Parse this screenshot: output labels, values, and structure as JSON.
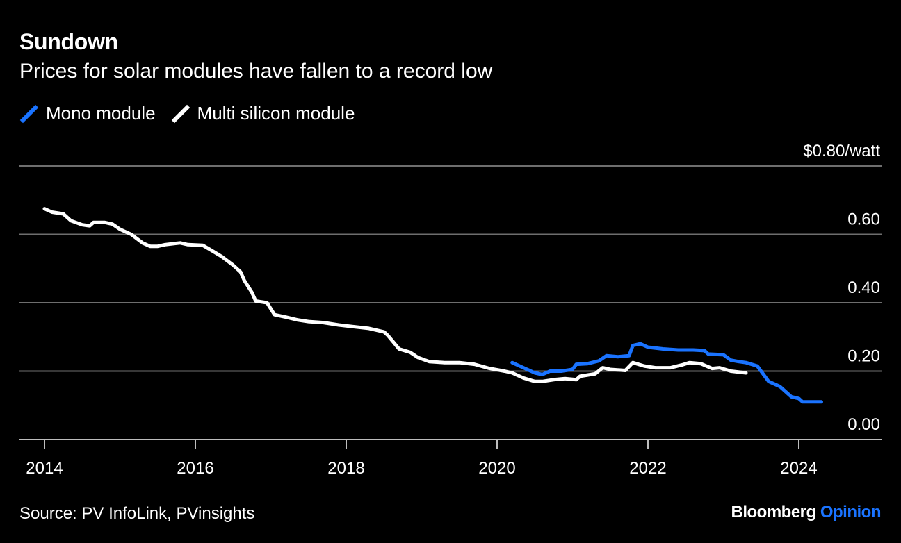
{
  "title": "Sundown",
  "subtitle": "Prices for solar modules have fallen to a record low",
  "source": "Source: PV InfoLink, PVinsights",
  "brand": {
    "name": "Bloomberg",
    "suffix": "Opinion",
    "suffix_color": "#1a73ff"
  },
  "chart_data": {
    "type": "line",
    "title": "Sundown",
    "subtitle": "Prices for solar modules have fallen to a record low",
    "y_unit_label": "$0.80/watt",
    "ylim": [
      0,
      0.8
    ],
    "xlim": [
      2013.7,
      2025.2
    ],
    "y_ticks": [
      {
        "value": 0.8,
        "label": "$0.80/watt"
      },
      {
        "value": 0.6,
        "label": "0.60"
      },
      {
        "value": 0.4,
        "label": "0.40"
      },
      {
        "value": 0.2,
        "label": "0.20"
      },
      {
        "value": 0.0,
        "label": "0.00"
      }
    ],
    "x_ticks": [
      {
        "value": 2014,
        "label": "2014"
      },
      {
        "value": 2016,
        "label": "2016"
      },
      {
        "value": 2018,
        "label": "2018"
      },
      {
        "value": 2020,
        "label": "2020"
      },
      {
        "value": 2022,
        "label": "2022"
      },
      {
        "value": 2024,
        "label": "2024"
      }
    ],
    "grid": true,
    "legend_position": "top-left",
    "series": [
      {
        "name": "Mono module",
        "color": "#1a73ff",
        "points": [
          [
            2020.2,
            0.225
          ],
          [
            2020.35,
            0.21
          ],
          [
            2020.5,
            0.195
          ],
          [
            2020.6,
            0.19
          ],
          [
            2020.7,
            0.2
          ],
          [
            2020.85,
            0.2
          ],
          [
            2021.0,
            0.205
          ],
          [
            2021.05,
            0.22
          ],
          [
            2021.2,
            0.222
          ],
          [
            2021.35,
            0.23
          ],
          [
            2021.45,
            0.245
          ],
          [
            2021.6,
            0.242
          ],
          [
            2021.75,
            0.245
          ],
          [
            2021.8,
            0.275
          ],
          [
            2021.9,
            0.28
          ],
          [
            2022.0,
            0.27
          ],
          [
            2022.2,
            0.265
          ],
          [
            2022.4,
            0.262
          ],
          [
            2022.6,
            0.262
          ],
          [
            2022.75,
            0.26
          ],
          [
            2022.8,
            0.25
          ],
          [
            2023.0,
            0.248
          ],
          [
            2023.1,
            0.232
          ],
          [
            2023.2,
            0.228
          ],
          [
            2023.3,
            0.225
          ],
          [
            2023.45,
            0.215
          ],
          [
            2023.6,
            0.17
          ],
          [
            2023.75,
            0.155
          ],
          [
            2023.9,
            0.125
          ],
          [
            2024.0,
            0.12
          ],
          [
            2024.05,
            0.11
          ],
          [
            2024.3,
            0.11
          ]
        ]
      },
      {
        "name": "Multi silicon module",
        "color": "#ffffff",
        "points": [
          [
            2014.0,
            0.675
          ],
          [
            2014.1,
            0.665
          ],
          [
            2014.25,
            0.66
          ],
          [
            2014.35,
            0.64
          ],
          [
            2014.5,
            0.628
          ],
          [
            2014.6,
            0.625
          ],
          [
            2014.65,
            0.635
          ],
          [
            2014.8,
            0.635
          ],
          [
            2014.9,
            0.63
          ],
          [
            2015.0,
            0.615
          ],
          [
            2015.15,
            0.6
          ],
          [
            2015.3,
            0.575
          ],
          [
            2015.4,
            0.565
          ],
          [
            2015.5,
            0.565
          ],
          [
            2015.6,
            0.57
          ],
          [
            2015.8,
            0.575
          ],
          [
            2015.9,
            0.57
          ],
          [
            2016.1,
            0.568
          ],
          [
            2016.2,
            0.555
          ],
          [
            2016.35,
            0.535
          ],
          [
            2016.5,
            0.51
          ],
          [
            2016.6,
            0.49
          ],
          [
            2016.65,
            0.465
          ],
          [
            2016.75,
            0.43
          ],
          [
            2016.8,
            0.405
          ],
          [
            2016.95,
            0.4
          ],
          [
            2017.05,
            0.365
          ],
          [
            2017.2,
            0.358
          ],
          [
            2017.35,
            0.35
          ],
          [
            2017.5,
            0.345
          ],
          [
            2017.7,
            0.342
          ],
          [
            2017.9,
            0.335
          ],
          [
            2018.1,
            0.33
          ],
          [
            2018.3,
            0.325
          ],
          [
            2018.5,
            0.315
          ],
          [
            2018.55,
            0.305
          ],
          [
            2018.7,
            0.265
          ],
          [
            2018.85,
            0.255
          ],
          [
            2018.95,
            0.24
          ],
          [
            2019.1,
            0.228
          ],
          [
            2019.3,
            0.225
          ],
          [
            2019.5,
            0.225
          ],
          [
            2019.7,
            0.22
          ],
          [
            2019.9,
            0.208
          ],
          [
            2020.1,
            0.2
          ],
          [
            2020.2,
            0.195
          ],
          [
            2020.35,
            0.18
          ],
          [
            2020.5,
            0.17
          ],
          [
            2020.6,
            0.17
          ],
          [
            2020.75,
            0.175
          ],
          [
            2020.9,
            0.178
          ],
          [
            2021.05,
            0.175
          ],
          [
            2021.1,
            0.185
          ],
          [
            2021.3,
            0.192
          ],
          [
            2021.4,
            0.21
          ],
          [
            2021.5,
            0.205
          ],
          [
            2021.7,
            0.202
          ],
          [
            2021.8,
            0.225
          ],
          [
            2021.95,
            0.215
          ],
          [
            2022.1,
            0.21
          ],
          [
            2022.3,
            0.21
          ],
          [
            2022.45,
            0.218
          ],
          [
            2022.55,
            0.225
          ],
          [
            2022.7,
            0.222
          ],
          [
            2022.85,
            0.208
          ],
          [
            2022.95,
            0.21
          ],
          [
            2023.1,
            0.2
          ],
          [
            2023.3,
            0.195
          ]
        ]
      }
    ]
  }
}
